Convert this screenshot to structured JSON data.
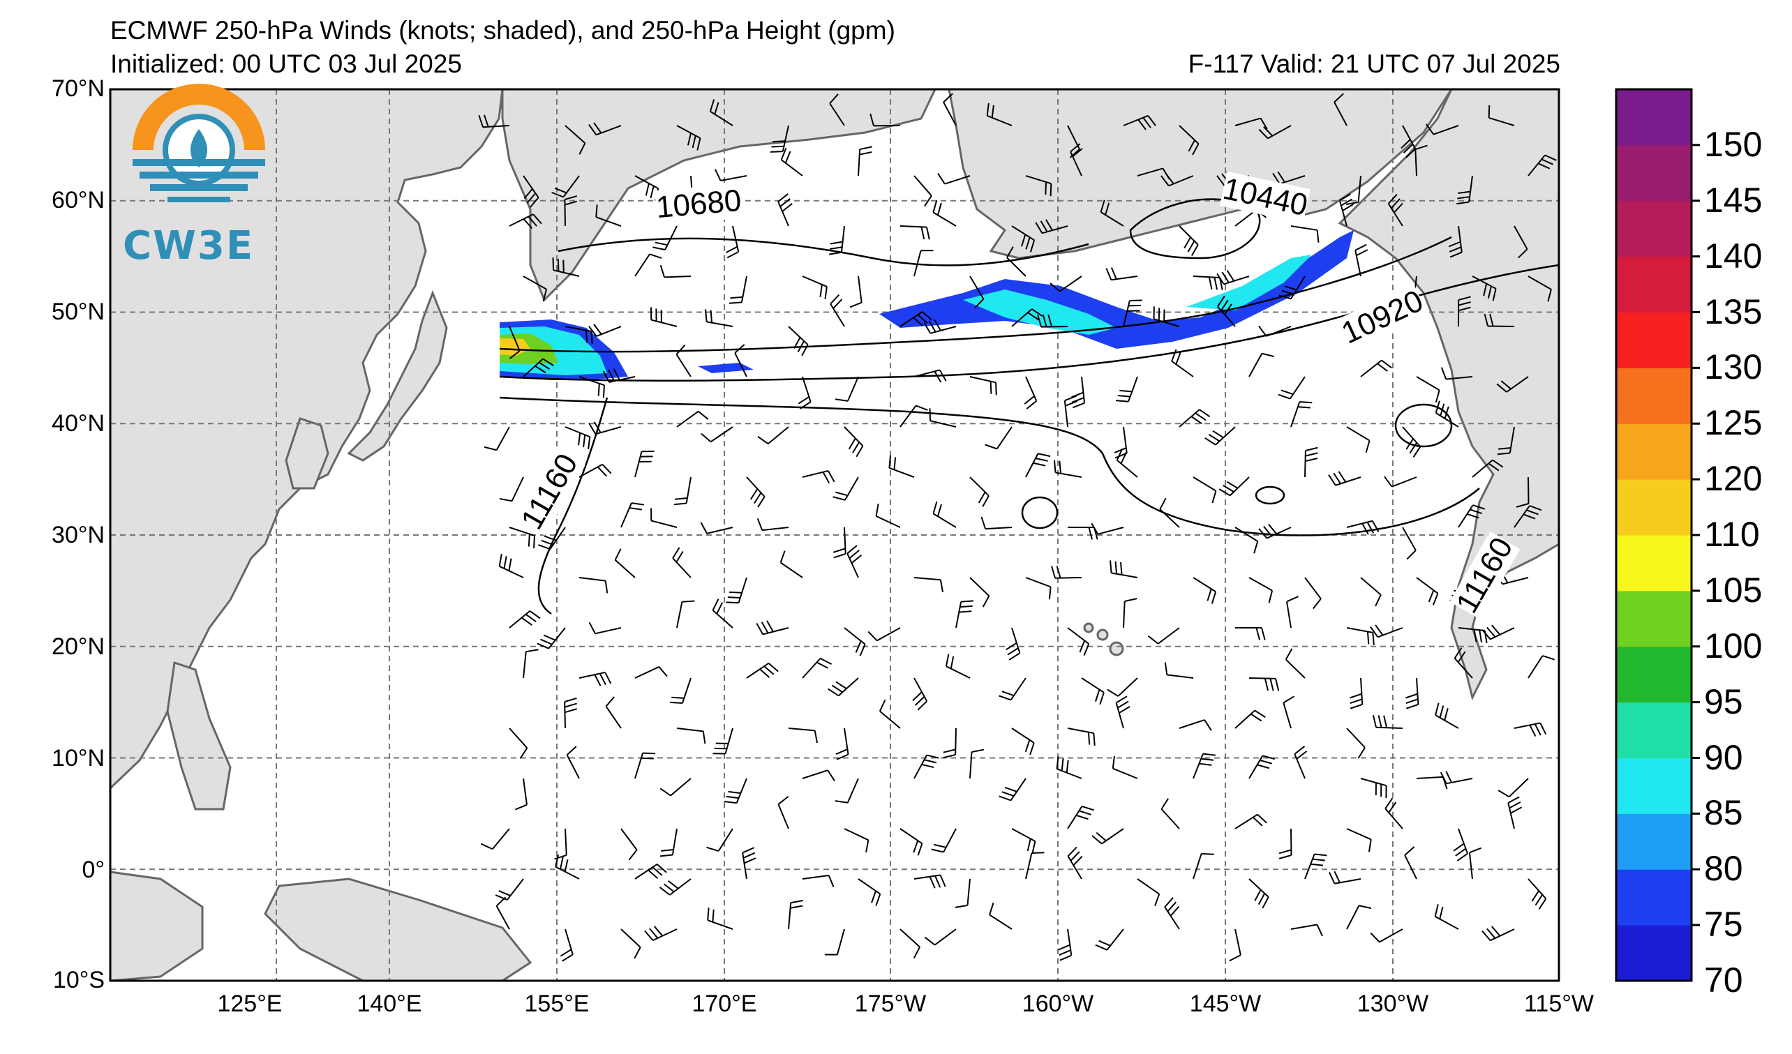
{
  "header": {
    "title": "ECMWF 250-hPa Winds (knots; shaded), and 250-hPa Height (gpm)",
    "initialized": "Initialized: 00 UTC 03 Jul 2025",
    "valid": "F-117  Valid: 21 UTC 07 Jul 2025"
  },
  "logo": {
    "text": "CW3E",
    "colors": {
      "orange": "#f7941d",
      "blue": "#2f8fb6"
    }
  },
  "map": {
    "lat_labels": [
      "70°N",
      "60°N",
      "50°N",
      "40°N",
      "30°N",
      "20°N",
      "10°N",
      "0°",
      "10°S"
    ],
    "lon_labels": [
      "125°E",
      "140°E",
      "155°E",
      "170°E",
      "175°W",
      "160°W",
      "145°W",
      "130°W",
      "115°W"
    ],
    "contour_labels": [
      "10680",
      "10440",
      "10920",
      "11160",
      "11160"
    ],
    "land_color": "#e0e0e0",
    "coastline_color": "#666666"
  },
  "colorbar": {
    "levels": [
      "70",
      "75",
      "80",
      "85",
      "90",
      "95",
      "100",
      "105",
      "110",
      "120",
      "125",
      "130",
      "135",
      "140",
      "145",
      "150"
    ],
    "colors": [
      "#1c1cd6",
      "#1e3ff0",
      "#1e9ef5",
      "#21e8f0",
      "#1fdfa6",
      "#21b830",
      "#6fd01f",
      "#f7f71d",
      "#f7cd1d",
      "#f7a51d",
      "#f7701d",
      "#f72121",
      "#d61c3c",
      "#b51c5a",
      "#9a1c6e",
      "#7b1c8c"
    ]
  }
}
